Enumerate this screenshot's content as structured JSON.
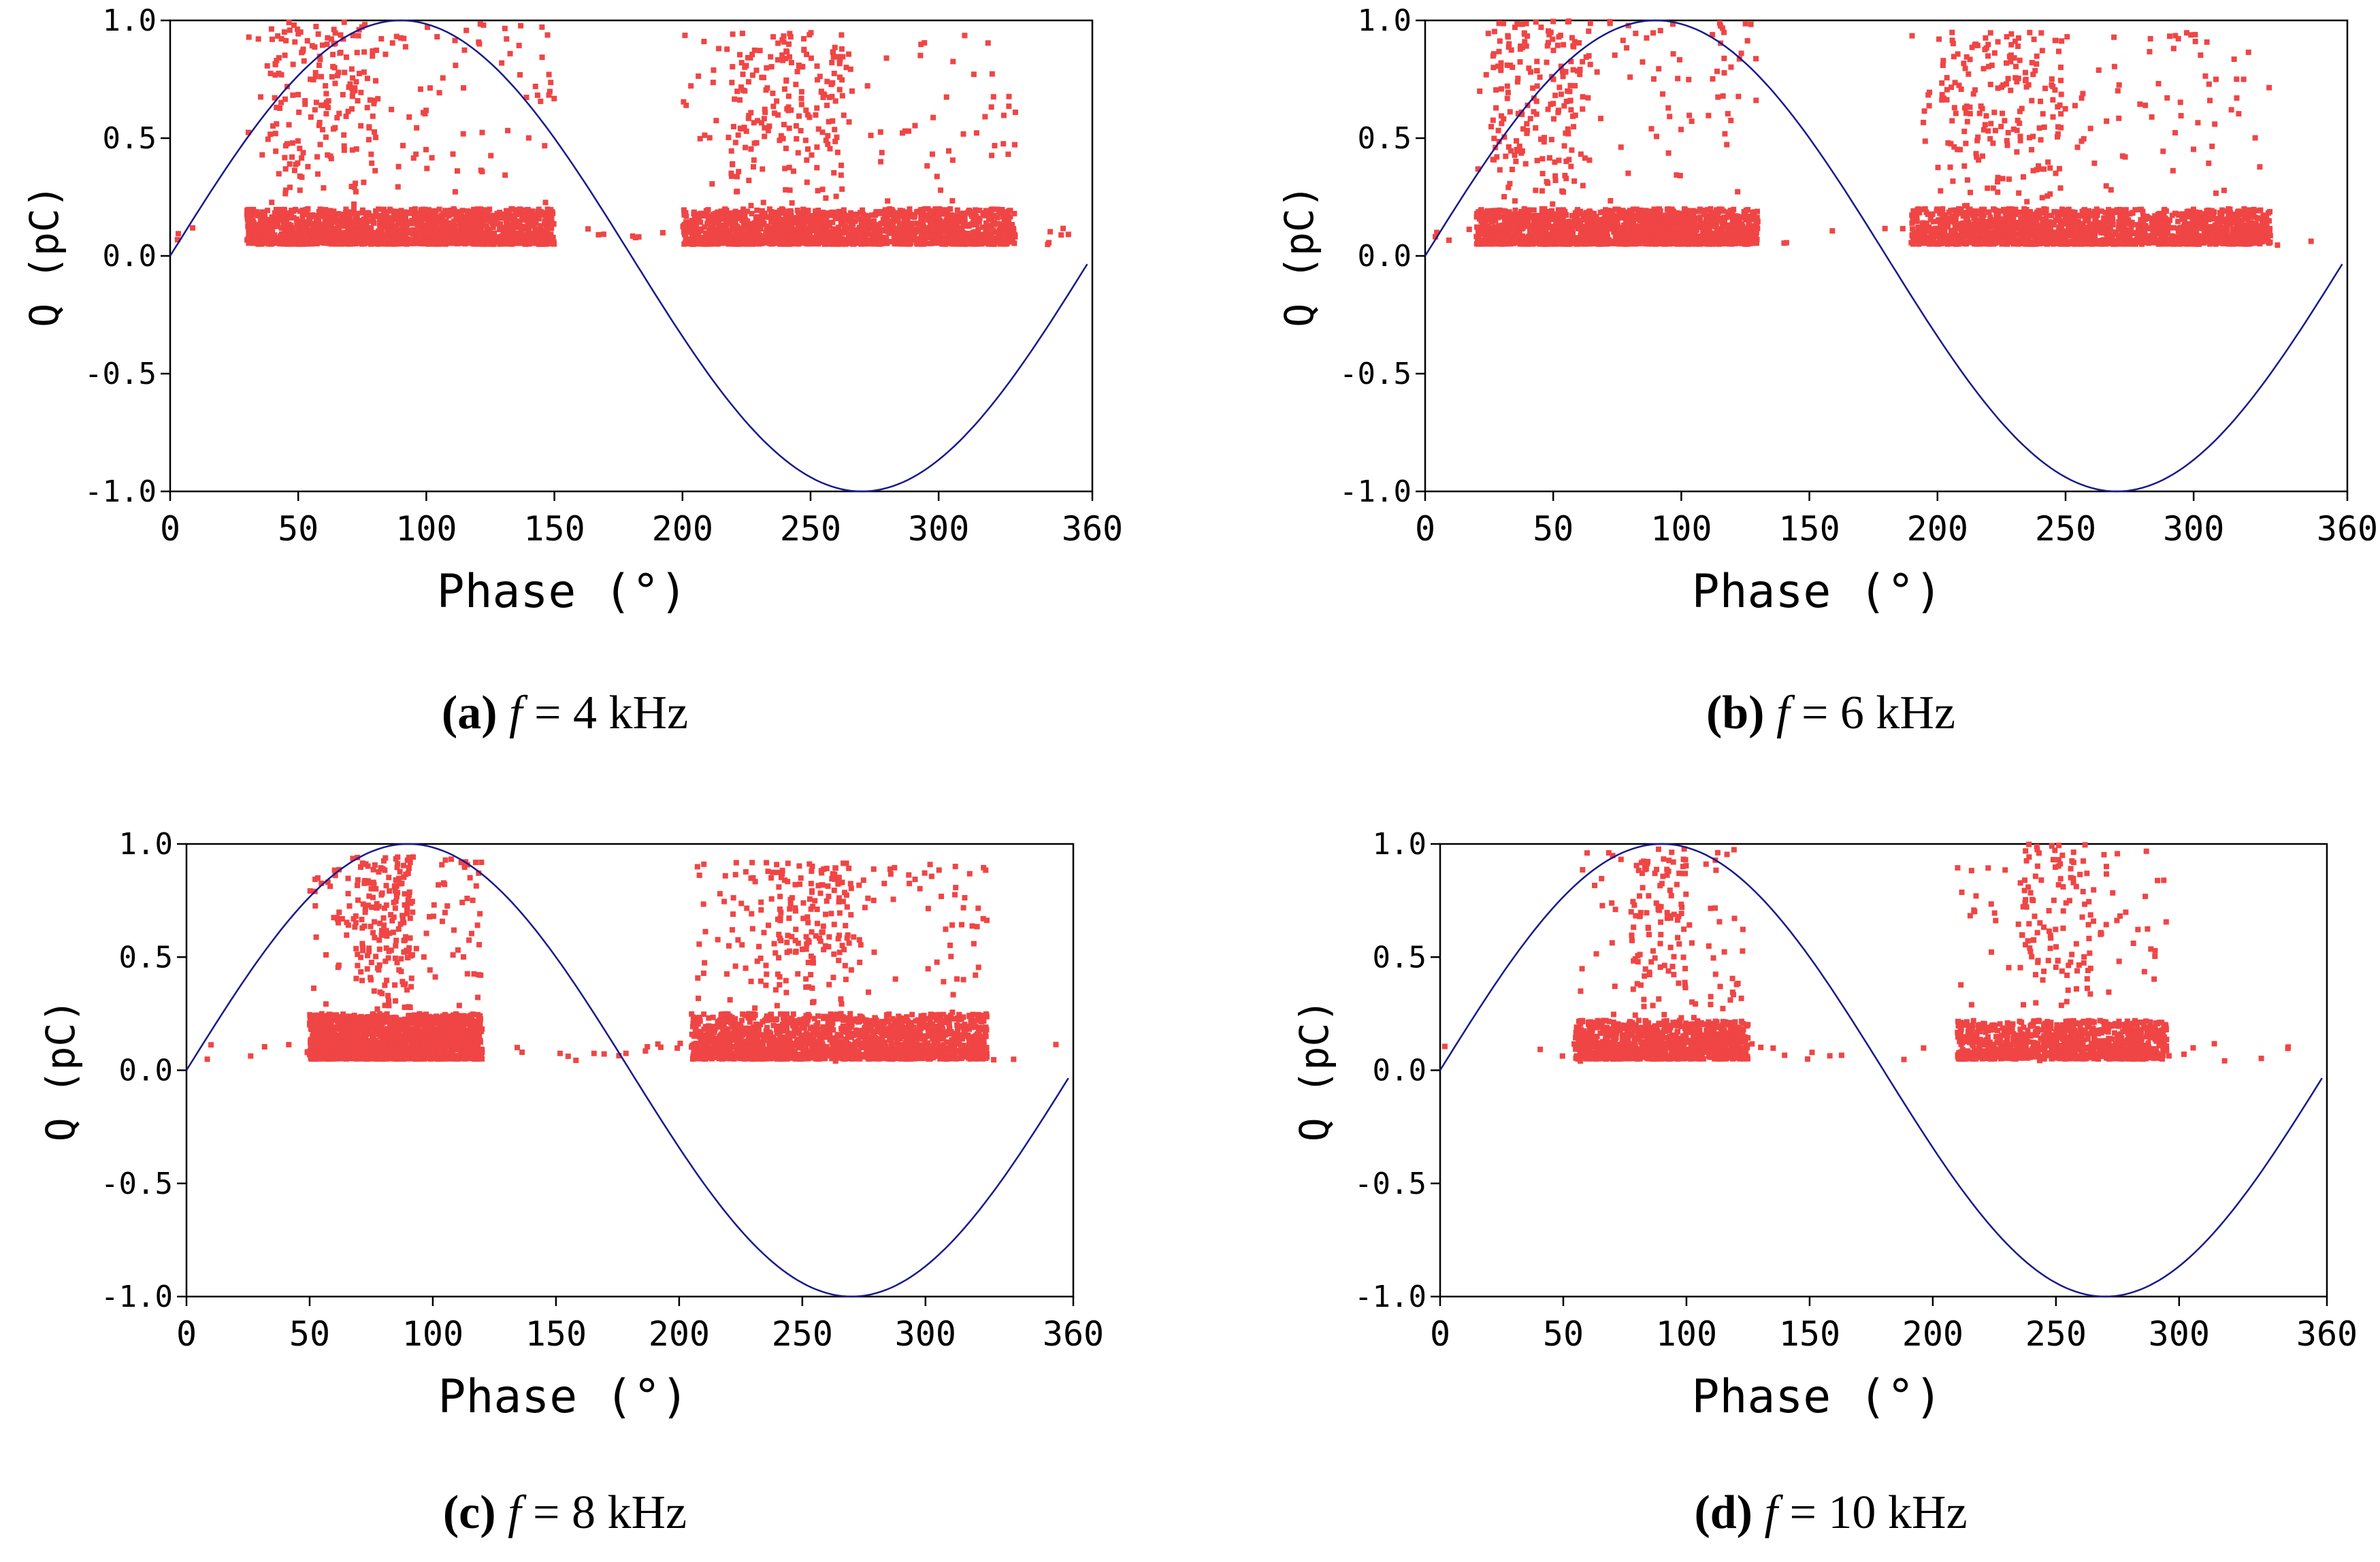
{
  "chart_data": [
    {
      "id": "a",
      "type": "scatter",
      "xlabel": "Phase (°)",
      "ylabel": "Q (pC)",
      "xlim": [
        0,
        360
      ],
      "ylim": [
        -1.0,
        1.0
      ],
      "xticks": [
        "0",
        "50",
        "100",
        "150",
        "200",
        "250",
        "300",
        "360"
      ],
      "yticks": [
        "1.0",
        "0.5",
        "0.0",
        "-0.5",
        "-1.0"
      ],
      "reference_curve": {
        "name": "sin(phase)",
        "amplitude": 1.0,
        "color": "#1a1a8c"
      },
      "marker_color": "#f04545",
      "clusters": [
        {
          "phase_range": [
            30,
            150
          ],
          "q_base": [
            0.05,
            0.2
          ],
          "q_peak": 1.0,
          "peak_phase": 60,
          "density": "high"
        },
        {
          "phase_range": [
            200,
            330
          ],
          "q_base": [
            0.05,
            0.2
          ],
          "q_peak": 0.95,
          "peak_phase": 240,
          "density": "high"
        }
      ],
      "caption": {
        "label": "(a)",
        "var": "f",
        "text": " = 4 kHz"
      }
    },
    {
      "id": "b",
      "type": "scatter",
      "xlabel": "Phase (°)",
      "ylabel": "Q (pC)",
      "xlim": [
        0,
        360
      ],
      "ylim": [
        -1.0,
        1.0
      ],
      "xticks": [
        "0",
        "50",
        "100",
        "150",
        "200",
        "250",
        "300",
        "360"
      ],
      "yticks": [
        "1.0",
        "0.5",
        "0.0",
        "-0.5",
        "-1.0"
      ],
      "reference_curve": {
        "name": "sin(phase)",
        "amplitude": 1.0,
        "color": "#1a1a8c"
      },
      "marker_color": "#f04545",
      "clusters": [
        {
          "phase_range": [
            20,
            130
          ],
          "q_base": [
            0.05,
            0.2
          ],
          "q_peak": 1.0,
          "peak_phase": 45,
          "density": "high"
        },
        {
          "phase_range": [
            190,
            330
          ],
          "q_base": [
            0.05,
            0.2
          ],
          "q_peak": 0.95,
          "peak_phase": 225,
          "density": "high"
        }
      ],
      "caption": {
        "label": "(b)",
        "var": "f",
        "text": " = 6 kHz"
      }
    },
    {
      "id": "c",
      "type": "scatter",
      "xlabel": "Phase (°)",
      "ylabel": "Q (pC)",
      "xlim": [
        0,
        360
      ],
      "ylim": [
        -1.0,
        1.0
      ],
      "xticks": [
        "0",
        "50",
        "100",
        "150",
        "200",
        "250",
        "300",
        "360"
      ],
      "yticks": [
        "1.0",
        "0.5",
        "0.0",
        "-0.5",
        "-1.0"
      ],
      "reference_curve": {
        "name": "sin(phase)",
        "amplitude": 1.0,
        "color": "#1a1a8c"
      },
      "marker_color": "#f04545",
      "clusters": [
        {
          "phase_range": [
            50,
            120
          ],
          "q_base": [
            0.05,
            0.25
          ],
          "q_peak": 0.95,
          "peak_phase": 80,
          "density": "high"
        },
        {
          "phase_range": [
            205,
            325
          ],
          "q_base": [
            0.05,
            0.25
          ],
          "q_peak": 0.92,
          "peak_phase": 250,
          "density": "high"
        }
      ],
      "caption": {
        "label": "(c)",
        "var": "f",
        "text": " = 8 kHz"
      }
    },
    {
      "id": "d",
      "type": "scatter",
      "xlabel": "Phase (°)",
      "ylabel": "Q (pC)",
      "xlim": [
        0,
        360
      ],
      "ylim": [
        -1.0,
        1.0
      ],
      "xticks": [
        "0",
        "50",
        "100",
        "150",
        "200",
        "250",
        "300",
        "360"
      ],
      "yticks": [
        "1.0",
        "0.5",
        "0.0",
        "-0.5",
        "-1.0"
      ],
      "reference_curve": {
        "name": "sin(phase)",
        "amplitude": 1.0,
        "color": "#1a1a8c"
      },
      "marker_color": "#f04545",
      "clusters": [
        {
          "phase_range": [
            55,
            125
          ],
          "q_base": [
            0.05,
            0.22
          ],
          "q_peak": 0.98,
          "peak_phase": 90,
          "density": "medium"
        },
        {
          "phase_range": [
            210,
            295
          ],
          "q_base": [
            0.05,
            0.22
          ],
          "q_peak": 1.0,
          "peak_phase": 250,
          "density": "medium"
        }
      ],
      "caption": {
        "label": "(d)",
        "var": "f",
        "text": " = 10 kHz"
      }
    }
  ]
}
